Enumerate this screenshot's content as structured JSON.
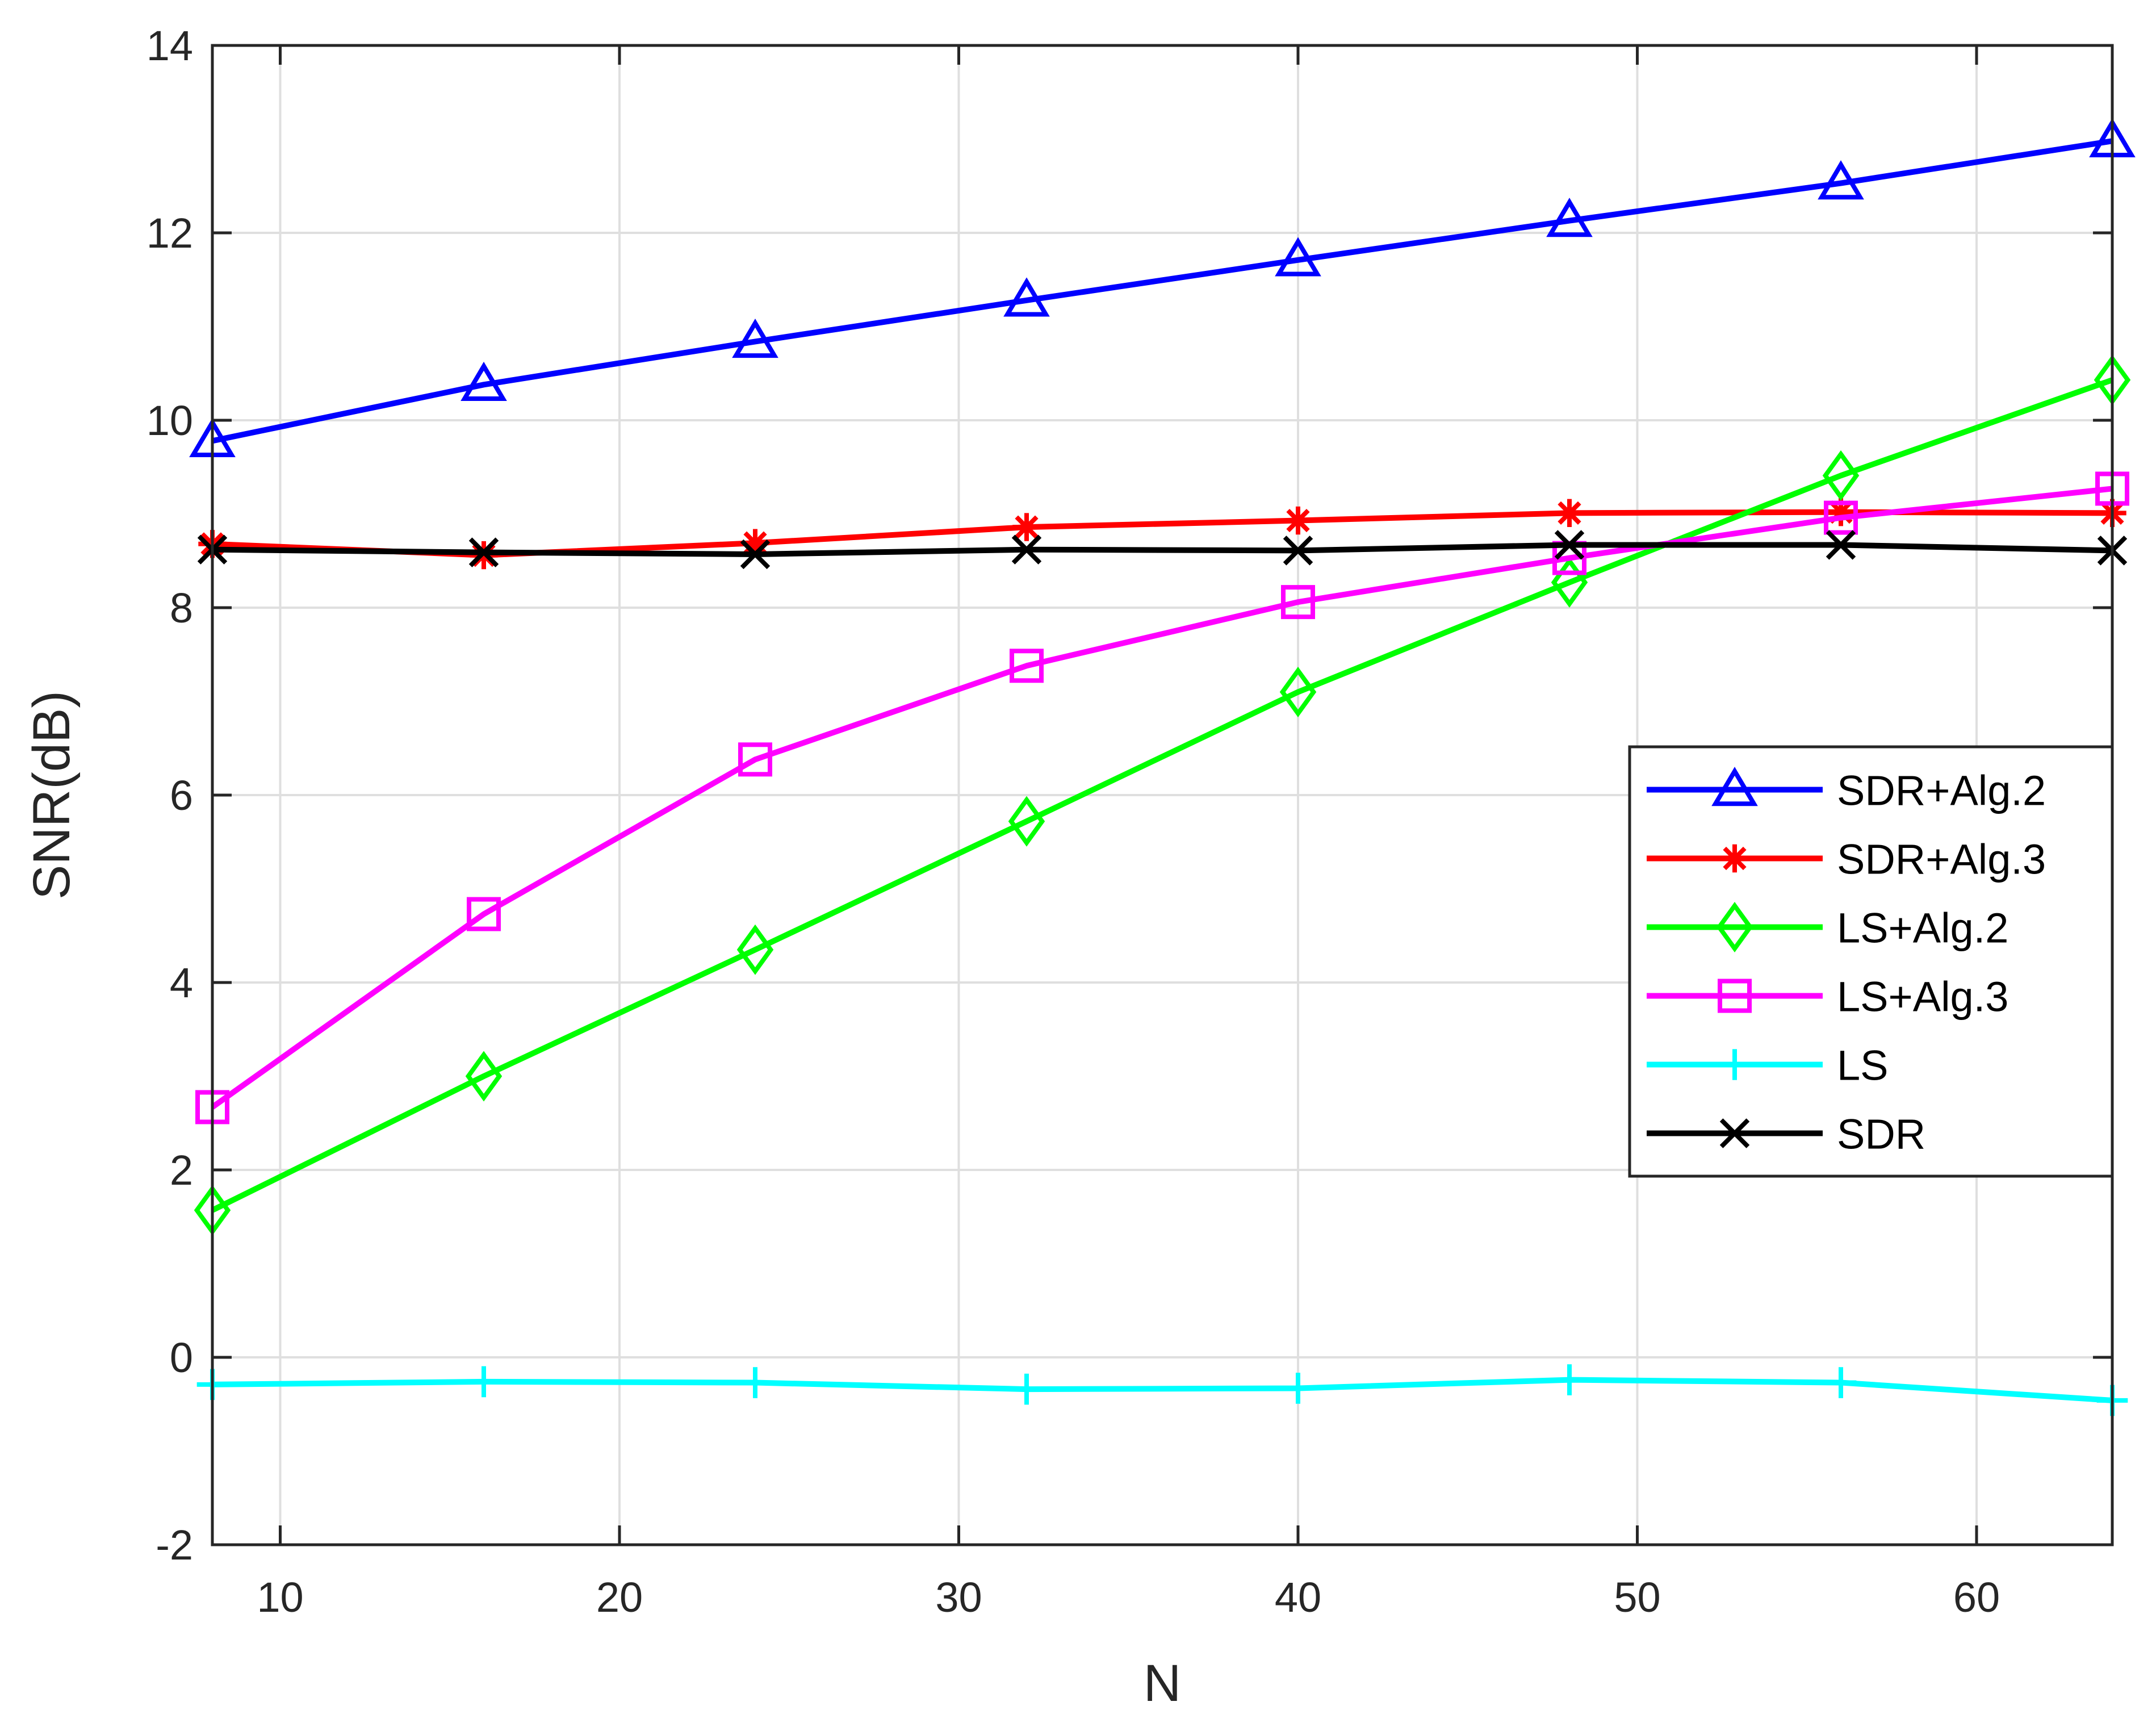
{
  "chart_data": {
    "type": "line",
    "title": "",
    "xlabel": "N",
    "ylabel": "SNR(dB)",
    "xlim": [
      8,
      64
    ],
    "ylim": [
      -2,
      14
    ],
    "xticks": [
      10,
      20,
      30,
      40,
      50,
      60
    ],
    "yticks": [
      -2,
      0,
      2,
      4,
      6,
      8,
      10,
      12,
      14
    ],
    "xtick_labels": [
      "10",
      "20",
      "30",
      "40",
      "50",
      "60"
    ],
    "ytick_labels": [
      "-2",
      "0",
      "2",
      "4",
      "6",
      "8",
      "10",
      "12",
      "14"
    ],
    "grid": true,
    "legend_position": "right",
    "x": [
      8,
      16,
      24,
      32,
      40,
      48,
      56,
      64
    ],
    "series": [
      {
        "name": "SDR+Alg.2",
        "color": "#0000ff",
        "marker": "triangle",
        "values": [
          9.78,
          10.38,
          10.84,
          11.28,
          11.71,
          12.13,
          12.53,
          12.98
        ]
      },
      {
        "name": "SDR+Alg.3",
        "color": "#ff0000",
        "marker": "asterisk",
        "values": [
          8.68,
          8.56,
          8.69,
          8.86,
          8.93,
          9.01,
          9.02,
          9.01
        ]
      },
      {
        "name": "LS+Alg.2",
        "color": "#00ff00",
        "marker": "diamond",
        "values": [
          1.57,
          3.0,
          4.35,
          5.72,
          7.1,
          8.27,
          9.41,
          10.43
        ]
      },
      {
        "name": "LS+Alg.3",
        "color": "#ff00ff",
        "marker": "square",
        "values": [
          2.67,
          4.73,
          6.38,
          7.38,
          8.06,
          8.53,
          8.96,
          9.27
        ]
      },
      {
        "name": "LS",
        "color": "#00ffff",
        "marker": "plus",
        "values": [
          -0.29,
          -0.26,
          -0.27,
          -0.34,
          -0.33,
          -0.24,
          -0.27,
          -0.46
        ]
      },
      {
        "name": "SDR",
        "color": "#000000",
        "marker": "x",
        "values": [
          8.62,
          8.59,
          8.57,
          8.62,
          8.61,
          8.67,
          8.67,
          8.61
        ]
      }
    ]
  }
}
